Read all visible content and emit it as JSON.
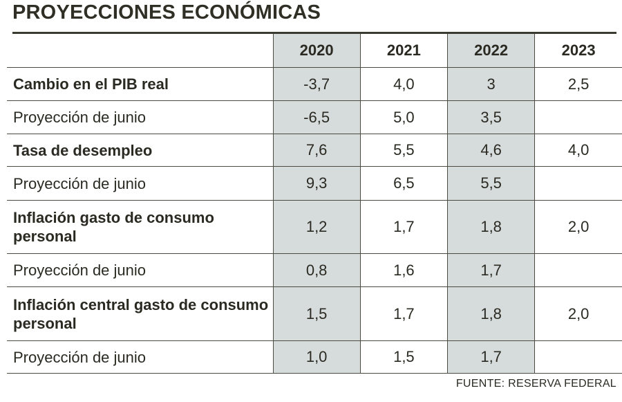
{
  "chart_data": {
    "type": "table",
    "title": "PROYECCIONES ECONÓMICAS",
    "columns": [
      "2020",
      "2021",
      "2022",
      "2023"
    ],
    "shaded_columns": [
      "2020",
      "2022"
    ],
    "shade_color": "#d6dbdc",
    "rows": [
      {
        "label": "Cambio en el PIB real",
        "emphasis": "bold",
        "values": [
          "-3,7",
          "4,0",
          "3",
          "2,5"
        ]
      },
      {
        "label": "Proyección de junio",
        "emphasis": "normal",
        "values": [
          "-6,5",
          "5,0",
          "3,5",
          ""
        ]
      },
      {
        "label": "Tasa de desempleo",
        "emphasis": "bold",
        "values": [
          "7,6",
          "5,5",
          "4,6",
          "4,0"
        ]
      },
      {
        "label": "Proyección de junio",
        "emphasis": "normal",
        "values": [
          "9,3",
          "6,5",
          "5,5",
          ""
        ]
      },
      {
        "label": "Inflación gasto de consumo personal",
        "emphasis": "bold",
        "values": [
          "1,2",
          "1,7",
          "1,8",
          "2,0"
        ]
      },
      {
        "label": "Proyección de junio",
        "emphasis": "normal",
        "values": [
          "0,8",
          "1,6",
          "1,7",
          ""
        ]
      },
      {
        "label": "Inflación central gasto de consumo personal",
        "emphasis": "bold",
        "values": [
          "1,5",
          "1,7",
          "1,8",
          "2,0"
        ]
      },
      {
        "label": "Proyección de junio",
        "emphasis": "normal",
        "values": [
          "1,0",
          "1,5",
          "1,7",
          ""
        ]
      }
    ],
    "source": "FUENTE: RESERVA FEDERAL"
  }
}
